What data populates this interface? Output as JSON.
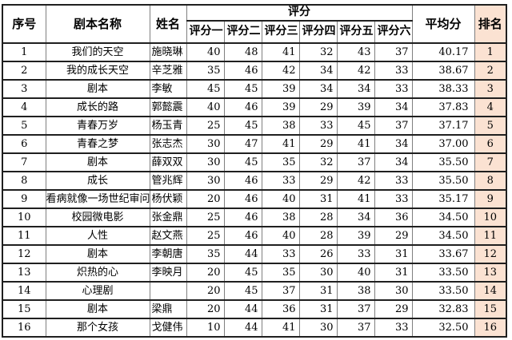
{
  "colors": {
    "rank_column_bg": "#fbe2d2",
    "grid_dark": "#1f1f1f",
    "grid_light": "#7f7f7f",
    "background": "#ffffff",
    "text": "#000000"
  },
  "table": {
    "headers": {
      "no": "序号",
      "title": "剧本名称",
      "name": "姓名",
      "score_group": "评分",
      "score_cols": [
        "评分一",
        "评分二",
        "评分三",
        "评分四",
        "评分五",
        "评分六"
      ],
      "average": "平均分",
      "rank": "排名"
    },
    "rows": [
      {
        "no": 1,
        "title": "我们的天空",
        "name": "施晓琳",
        "scores": [
          40,
          48,
          41,
          32,
          43,
          37
        ],
        "average": "40.17",
        "rank": 1
      },
      {
        "no": 2,
        "title": "我的成长天空",
        "name": "辛芝雅",
        "scores": [
          35,
          46,
          42,
          34,
          42,
          33
        ],
        "average": "38.67",
        "rank": 2
      },
      {
        "no": 3,
        "title": "剧本",
        "name": "李敏",
        "scores": [
          45,
          45,
          39,
          34,
          34,
          33
        ],
        "average": "38.33",
        "rank": 3
      },
      {
        "no": 4,
        "title": "成长的路",
        "name": "郭懿震",
        "scores": [
          40,
          46,
          39,
          29,
          39,
          34
        ],
        "average": "37.83",
        "rank": 4
      },
      {
        "no": 5,
        "title": "青春万岁",
        "name": "杨玉青",
        "scores": [
          25,
          45,
          38,
          33,
          45,
          37
        ],
        "average": "37.17",
        "rank": 5
      },
      {
        "no": 6,
        "title": "青春之梦",
        "name": "张志杰",
        "scores": [
          30,
          47,
          41,
          29,
          41,
          34
        ],
        "average": "37.00",
        "rank": 6
      },
      {
        "no": 7,
        "title": "剧本",
        "name": "薛双双",
        "scores": [
          30,
          45,
          35,
          32,
          37,
          34
        ],
        "average": "35.50",
        "rank": 7
      },
      {
        "no": 8,
        "title": "成长",
        "name": "管兆辉",
        "scores": [
          30,
          46,
          33,
          29,
          42,
          33
        ],
        "average": "35.50",
        "rank": 8
      },
      {
        "no": 9,
        "title": "看病就像一场世纪审问",
        "name": "杨伏颖",
        "scores": [
          20,
          46,
          40,
          31,
          41,
          33
        ],
        "average": "35.17",
        "rank": 9
      },
      {
        "no": 10,
        "title": "校园微电影",
        "name": "张金鼎",
        "scores": [
          25,
          46,
          38,
          28,
          34,
          36
        ],
        "average": "34.50",
        "rank": 10
      },
      {
        "no": 11,
        "title": "人性",
        "name": "赵文燕",
        "scores": [
          25,
          46,
          40,
          28,
          39,
          29
        ],
        "average": "34.50",
        "rank": 11
      },
      {
        "no": 12,
        "title": "剧本",
        "name": "李朝唐",
        "scores": [
          35,
          44,
          33,
          26,
          33,
          31
        ],
        "average": "33.67",
        "rank": 12
      },
      {
        "no": 13,
        "title": "炽热的心",
        "name": "李映月",
        "scores": [
          20,
          45,
          35,
          30,
          40,
          31
        ],
        "average": "33.50",
        "rank": 13
      },
      {
        "no": 14,
        "title": "心理剧",
        "name": "",
        "scores": [
          20,
          45,
          37,
          31,
          38,
          30
        ],
        "average": "33.50",
        "rank": 14
      },
      {
        "no": 15,
        "title": "剧本",
        "name": "梁鼎",
        "scores": [
          20,
          44,
          36,
          31,
          37,
          29
        ],
        "average": "32.83",
        "rank": 15
      },
      {
        "no": 16,
        "title": "那个女孩",
        "name": "戈健伟",
        "scores": [
          10,
          44,
          41,
          30,
          37,
          33
        ],
        "average": "32.50",
        "rank": 16
      }
    ]
  }
}
